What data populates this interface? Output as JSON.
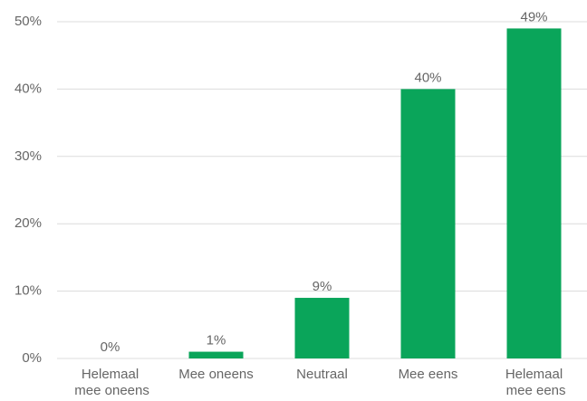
{
  "chart_data": {
    "type": "bar",
    "categories": [
      "Helemaal mee oneens",
      "Mee oneens",
      "Neutraal",
      "Mee eens",
      "Helemaal mee eens"
    ],
    "values": [
      0,
      1,
      9,
      40,
      49
    ],
    "value_labels": [
      "0%",
      "1%",
      "9%",
      "40%",
      "49%"
    ],
    "color": "#0aa55a",
    "ylim": [
      0,
      50
    ],
    "yticks": [
      {
        "value": 0,
        "label": "0%"
      },
      {
        "value": 10,
        "label": "10%"
      },
      {
        "value": 20,
        "label": "20%"
      },
      {
        "value": 30,
        "label": "30%"
      },
      {
        "value": 40,
        "label": "40%"
      },
      {
        "value": 50,
        "label": "50%"
      }
    ],
    "grid": true
  }
}
